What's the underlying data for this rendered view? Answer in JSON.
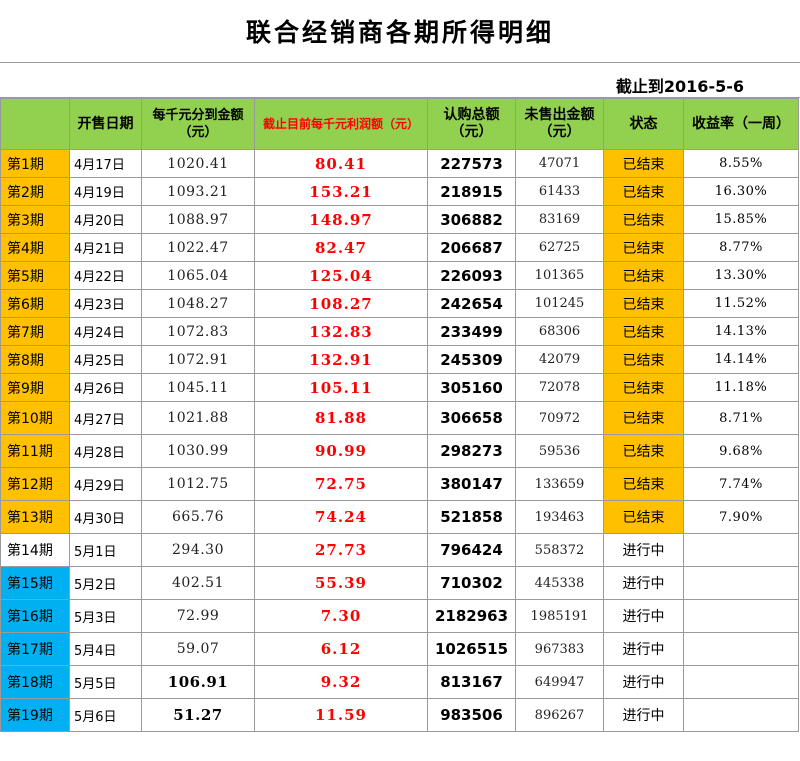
{
  "title": "联合经销商各期所得明细",
  "as_of": "截止到2016-5-6",
  "headers": {
    "period": "",
    "sale_date": "开售日期",
    "payout": "每千元分到金额（元）",
    "profit": "截止目前每千元利润额（元）",
    "subscribed": "认购总额（元）",
    "unsold": "未售出金额（元）",
    "status": "状态",
    "yield": "收益率（一周）"
  },
  "colors": {
    "header_bg": "#92d050",
    "finished_bg": "#ffc000",
    "active_bg": "#00b0f0",
    "profit_text": "#ff0000"
  },
  "rows": [
    {
      "period": "第1期",
      "date": "4月17日",
      "payout": "1020.41",
      "profit": "80.41",
      "total": "227573",
      "unsold": "47071",
      "status": "已结束",
      "yield": "8.55%",
      "pc": "orange",
      "done": true
    },
    {
      "period": "第2期",
      "date": "4月19日",
      "payout": "1093.21",
      "profit": "153.21",
      "total": "218915",
      "unsold": "61433",
      "status": "已结束",
      "yield": "16.30%",
      "pc": "orange",
      "done": true
    },
    {
      "period": "第3期",
      "date": "4月20日",
      "payout": "1088.97",
      "profit": "148.97",
      "total": "306882",
      "unsold": "83169",
      "status": "已结束",
      "yield": "15.85%",
      "pc": "orange",
      "done": true
    },
    {
      "period": "第4期",
      "date": "4月21日",
      "payout": "1022.47",
      "profit": "82.47",
      "total": "206687",
      "unsold": "62725",
      "status": "已结束",
      "yield": "8.77%",
      "pc": "orange",
      "done": true
    },
    {
      "period": "第5期",
      "date": "4月22日",
      "payout": "1065.04",
      "profit": "125.04",
      "total": "226093",
      "unsold": "101365",
      "status": "已结束",
      "yield": "13.30%",
      "pc": "orange",
      "done": true
    },
    {
      "period": "第6期",
      "date": "4月23日",
      "payout": "1048.27",
      "profit": "108.27",
      "total": "242654",
      "unsold": "101245",
      "status": "已结束",
      "yield": "11.52%",
      "pc": "orange",
      "done": true
    },
    {
      "period": "第7期",
      "date": "4月24日",
      "payout": "1072.83",
      "profit": "132.83",
      "total": "233499",
      "unsold": "68306",
      "status": "已结束",
      "yield": "14.13%",
      "pc": "orange",
      "done": true
    },
    {
      "period": "第8期",
      "date": "4月25日",
      "payout": "1072.91",
      "profit": "132.91",
      "total": "245309",
      "unsold": "42079",
      "status": "已结束",
      "yield": "14.14%",
      "pc": "orange",
      "done": true
    },
    {
      "period": "第9期",
      "date": "4月26日",
      "payout": "1045.11",
      "profit": "105.11",
      "total": "305160",
      "unsold": "72078",
      "status": "已结束",
      "yield": "11.18%",
      "pc": "orange",
      "done": true
    },
    {
      "period": "第10期",
      "date": "4月27日",
      "payout": "1021.88",
      "profit": "81.88",
      "total": "306658",
      "unsold": "70972",
      "status": "已结束",
      "yield": "8.71%",
      "pc": "orange",
      "done": true
    },
    {
      "period": "第11期",
      "date": "4月28日",
      "payout": "1030.99",
      "profit": "90.99",
      "total": "298273",
      "unsold": "59536",
      "status": "已结束",
      "yield": "9.68%",
      "pc": "orange",
      "done": true
    },
    {
      "period": "第12期",
      "date": "4月29日",
      "payout": "1012.75",
      "profit": "72.75",
      "total": "380147",
      "unsold": "133659",
      "status": "已结束",
      "yield": "7.74%",
      "pc": "orange",
      "done": true
    },
    {
      "period": "第13期",
      "date": "4月30日",
      "payout": "665.76",
      "profit": "74.24",
      "total": "521858",
      "unsold": "193463",
      "status": "已结束",
      "yield": "7.90%",
      "pc": "orange",
      "done": true
    },
    {
      "period": "第14期",
      "date": "5月1日",
      "payout": "294.30",
      "profit": "27.73",
      "total": "796424",
      "unsold": "558372",
      "status": "进行中",
      "yield": "",
      "pc": "none",
      "done": false
    },
    {
      "period": "第15期",
      "date": "5月2日",
      "payout": "402.51",
      "profit": "55.39",
      "total": "710302",
      "unsold": "445338",
      "status": "进行中",
      "yield": "",
      "pc": "blue",
      "done": false
    },
    {
      "period": "第16期",
      "date": "5月3日",
      "payout": "72.99",
      "profit": "7.30",
      "total": "2182963",
      "unsold": "1985191",
      "status": "进行中",
      "yield": "",
      "pc": "blue",
      "done": false
    },
    {
      "period": "第17期",
      "date": "5月4日",
      "payout": "59.07",
      "profit": "6.12",
      "total": "1026515",
      "unsold": "967383",
      "status": "进行中",
      "yield": "",
      "pc": "blue",
      "done": false
    },
    {
      "period": "第18期",
      "date": "5月5日",
      "payout": "106.91",
      "profit": "9.32",
      "total": "813167",
      "unsold": "649947",
      "status": "进行中",
      "yield": "",
      "pc": "blue",
      "done": false,
      "bold_payout": true
    },
    {
      "period": "第19期",
      "date": "5月6日",
      "payout": "51.27",
      "profit": "11.59",
      "total": "983506",
      "unsold": "896267",
      "status": "进行中",
      "yield": "",
      "pc": "blue",
      "done": false,
      "bold_payout": true
    }
  ]
}
